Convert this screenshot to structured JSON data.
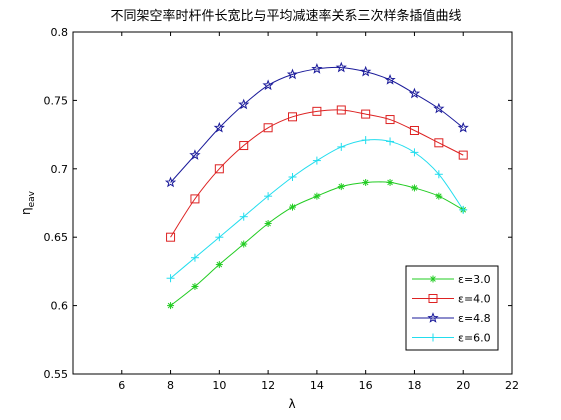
{
  "chart_data": {
    "type": "line",
    "title": "不同架空率时杆件长宽比与平均减速率关系三次样条插值曲线",
    "xlabel": "λ",
    "ylabel_main": "η",
    "ylabel_sub": "eav",
    "xlim": [
      4,
      22
    ],
    "ylim": [
      0.55,
      0.8
    ],
    "xticks": [
      "6",
      "8",
      "10",
      "12",
      "14",
      "16",
      "18",
      "20",
      "22"
    ],
    "yticks": [
      "0.55",
      "0.6",
      "0.65",
      "0.7",
      "0.75",
      "0.8"
    ],
    "xtick_values": [
      6,
      8,
      10,
      12,
      14,
      16,
      18,
      20,
      22
    ],
    "ytick_values": [
      0.55,
      0.6,
      0.65,
      0.7,
      0.75,
      0.8
    ],
    "grid": false,
    "legend_position": "bottom-right",
    "x": [
      8,
      9,
      10,
      11,
      12,
      13,
      14,
      15,
      16,
      17,
      18,
      19,
      20
    ],
    "series": [
      {
        "name": "ε=3.0",
        "color": "#22cc22",
        "marker": "asterisk",
        "values": [
          0.6,
          0.614,
          0.63,
          0.645,
          0.66,
          0.672,
          0.68,
          0.687,
          0.69,
          0.69,
          0.686,
          0.68,
          0.67
        ]
      },
      {
        "name": "ε=4.0",
        "color": "#dd2222",
        "marker": "square",
        "values": [
          0.65,
          0.678,
          0.7,
          0.717,
          0.73,
          0.738,
          0.742,
          0.743,
          0.74,
          0.736,
          0.728,
          0.719,
          0.71
        ]
      },
      {
        "name": "ε=4.8",
        "color": "#1a1a9a",
        "marker": "star",
        "values": [
          0.69,
          0.71,
          0.73,
          0.747,
          0.761,
          0.769,
          0.773,
          0.774,
          0.771,
          0.765,
          0.755,
          0.744,
          0.73
        ]
      },
      {
        "name": "ε=6.0",
        "color": "#22ddee",
        "marker": "plus",
        "values": [
          0.62,
          0.635,
          0.65,
          0.665,
          0.68,
          0.694,
          0.706,
          0.716,
          0.721,
          0.72,
          0.712,
          0.696,
          0.67
        ]
      }
    ]
  }
}
